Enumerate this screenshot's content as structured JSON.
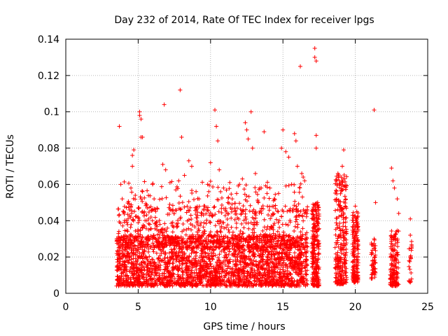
{
  "chart_data": {
    "type": "scatter",
    "title": "Day 232 of 2014, Rate Of TEC Index for receiver lpgs",
    "xlabel": "GPS time / hours",
    "ylabel": "ROTI / TECUs",
    "xlim": [
      0,
      25
    ],
    "ylim": [
      0,
      0.14
    ],
    "grid": true,
    "marker": "+",
    "color": "#ff0000",
    "x_ticks": [
      0,
      5,
      10,
      15,
      20,
      25
    ],
    "x_tick_labels": [
      "0",
      "5",
      "10",
      "15",
      "20",
      "25"
    ],
    "y_ticks": [
      0,
      0.02,
      0.04,
      0.06,
      0.08,
      0.1,
      0.12,
      0.14
    ],
    "y_tick_labels": [
      "0",
      "0.02",
      "0.04",
      "0.06",
      "0.08",
      "0.1",
      "0.12",
      "0.14"
    ],
    "series": [
      {
        "name": "ROTI",
        "points": [
          [
            3.7,
            0.092
          ],
          [
            3.8,
            0.06
          ],
          [
            3.9,
            0.052
          ],
          [
            4.0,
            0.045
          ],
          [
            4.2,
            0.04
          ],
          [
            4.5,
            0.058
          ],
          [
            4.6,
            0.07
          ],
          [
            4.6,
            0.076
          ],
          [
            4.7,
            0.079
          ],
          [
            4.8,
            0.054
          ],
          [
            5.0,
            0.047
          ],
          [
            5.1,
            0.1
          ],
          [
            5.1,
            0.098
          ],
          [
            5.2,
            0.096
          ],
          [
            5.2,
            0.086
          ],
          [
            5.3,
            0.086
          ],
          [
            5.3,
            0.056
          ],
          [
            5.6,
            0.04
          ],
          [
            5.8,
            0.038
          ],
          [
            6.0,
            0.06
          ],
          [
            6.1,
            0.052
          ],
          [
            6.3,
            0.035
          ],
          [
            6.5,
            0.038
          ],
          [
            6.7,
            0.071
          ],
          [
            6.8,
            0.104
          ],
          [
            6.9,
            0.068
          ],
          [
            7.2,
            0.061
          ],
          [
            7.4,
            0.046
          ],
          [
            7.6,
            0.057
          ],
          [
            7.8,
            0.062
          ],
          [
            7.9,
            0.112
          ],
          [
            8.0,
            0.086
          ],
          [
            8.2,
            0.065
          ],
          [
            8.5,
            0.073
          ],
          [
            8.7,
            0.07
          ],
          [
            9.0,
            0.056
          ],
          [
            9.2,
            0.052
          ],
          [
            9.4,
            0.044
          ],
          [
            9.6,
            0.048
          ],
          [
            9.8,
            0.06
          ],
          [
            10.0,
            0.072
          ],
          [
            10.3,
            0.101
          ],
          [
            10.4,
            0.092
          ],
          [
            10.5,
            0.084
          ],
          [
            10.6,
            0.068
          ],
          [
            10.9,
            0.058
          ],
          [
            11.2,
            0.05
          ],
          [
            11.5,
            0.052
          ],
          [
            11.8,
            0.055
          ],
          [
            12.0,
            0.06
          ],
          [
            12.2,
            0.063
          ],
          [
            12.4,
            0.094
          ],
          [
            12.5,
            0.09
          ],
          [
            12.6,
            0.085
          ],
          [
            12.8,
            0.1
          ],
          [
            12.9,
            0.08
          ],
          [
            13.1,
            0.066
          ],
          [
            13.4,
            0.058
          ],
          [
            13.7,
            0.089
          ],
          [
            13.9,
            0.055
          ],
          [
            14.1,
            0.058
          ],
          [
            14.4,
            0.052
          ],
          [
            14.7,
            0.055
          ],
          [
            14.9,
            0.08
          ],
          [
            15.0,
            0.09
          ],
          [
            15.2,
            0.078
          ],
          [
            15.4,
            0.075
          ],
          [
            15.6,
            0.06
          ],
          [
            15.8,
            0.088
          ],
          [
            15.9,
            0.084
          ],
          [
            16.0,
            0.07
          ],
          [
            16.2,
            0.125
          ],
          [
            16.3,
            0.066
          ],
          [
            16.4,
            0.064
          ],
          [
            16.5,
            0.062
          ],
          [
            17.2,
            0.135
          ],
          [
            17.2,
            0.13
          ],
          [
            17.3,
            0.128
          ],
          [
            17.3,
            0.087
          ],
          [
            17.3,
            0.08
          ],
          [
            17.4,
            0.05
          ],
          [
            18.8,
            0.066
          ],
          [
            18.9,
            0.062
          ],
          [
            19.1,
            0.07
          ],
          [
            19.2,
            0.079
          ],
          [
            19.3,
            0.048
          ],
          [
            20.0,
            0.048
          ],
          [
            20.1,
            0.045
          ],
          [
            21.3,
            0.101
          ],
          [
            21.4,
            0.05
          ],
          [
            21.3,
            0.03
          ],
          [
            22.5,
            0.069
          ],
          [
            22.6,
            0.062
          ],
          [
            22.7,
            0.058
          ],
          [
            22.9,
            0.052
          ],
          [
            23.0,
            0.044
          ],
          [
            23.8,
            0.041
          ],
          [
            23.8,
            0.032
          ],
          [
            23.9,
            0.026
          ],
          [
            23.8,
            0.02
          ]
        ],
        "clusters": [
          {
            "x_range": [
              3.5,
              16.7
            ],
            "y_range": [
              0.004,
              0.032
            ],
            "count": 2400
          },
          {
            "x_range": [
              3.6,
              16.7
            ],
            "y_range": [
              0.025,
              0.048
            ],
            "count": 650
          },
          {
            "x_range": [
              4.0,
              16.7
            ],
            "y_range": [
              0.045,
              0.062
            ],
            "count": 140
          },
          {
            "x_range": [
              17.0,
              17.5
            ],
            "y_range": [
              0.004,
              0.05
            ],
            "count": 240
          },
          {
            "x_range": [
              18.6,
              19.4
            ],
            "y_range": [
              0.005,
              0.066
            ],
            "count": 260
          },
          {
            "x_range": [
              19.8,
              20.2
            ],
            "y_range": [
              0.006,
              0.045
            ],
            "count": 160
          },
          {
            "x_range": [
              21.1,
              21.4
            ],
            "y_range": [
              0.008,
              0.03
            ],
            "count": 50
          },
          {
            "x_range": [
              22.4,
              23.0
            ],
            "y_range": [
              0.004,
              0.035
            ],
            "count": 150
          },
          {
            "x_range": [
              23.7,
              23.9
            ],
            "y_range": [
              0.006,
              0.03
            ],
            "count": 20
          }
        ]
      }
    ]
  }
}
